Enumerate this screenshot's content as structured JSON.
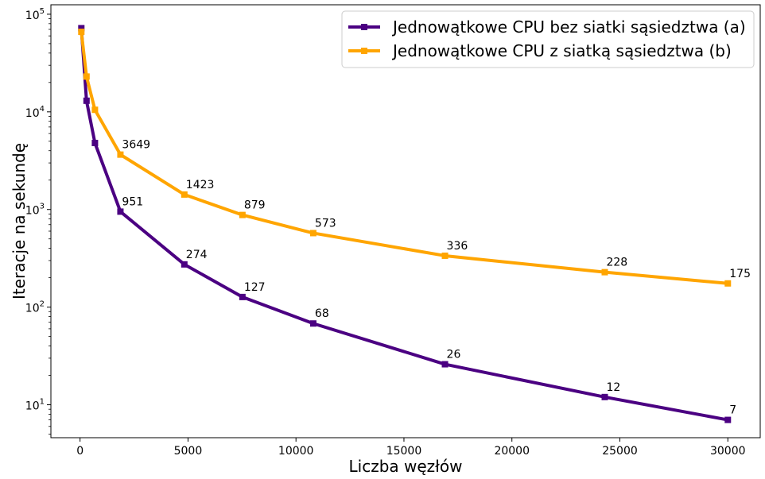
{
  "chart_data": {
    "type": "line",
    "xlabel": "Liczba węzłów",
    "ylabel": "Iteracje na sekundę",
    "xlim": [
      -1350,
      31500
    ],
    "ylim": [
      4.6,
      125000
    ],
    "yscale": "log",
    "x_ticks": [
      0,
      5000,
      10000,
      15000,
      20000,
      25000,
      30000
    ],
    "y_ticks": [
      {
        "value": 10,
        "base": "10",
        "exp": "1"
      },
      {
        "value": 100,
        "base": "10",
        "exp": "2"
      },
      {
        "value": 1000,
        "base": "10",
        "exp": "3"
      },
      {
        "value": 10000,
        "base": "10",
        "exp": "4"
      },
      {
        "value": 100000,
        "base": "10",
        "exp": "5"
      }
    ],
    "grid": false,
    "legend_position": "top-right",
    "series": [
      {
        "name": "Jednowątkowe CPU bez siatki sąsiedztwa (a)",
        "color": "#4b0082",
        "marker": "square",
        "x": [
          60,
          300,
          690,
          1870,
          4830,
          7520,
          10800,
          16900,
          24300,
          30000
        ],
        "y": [
          72000,
          13000,
          4800,
          951,
          274,
          127,
          68,
          26,
          12,
          7
        ],
        "labels": [
          "",
          "",
          "",
          "951",
          "274",
          "127",
          "68",
          "26",
          "12",
          "7"
        ]
      },
      {
        "name": "Jednowątkowe CPU z siatką sąsiedztwa (b)",
        "color": "#ffa500",
        "marker": "square",
        "x": [
          60,
          300,
          690,
          1870,
          4830,
          7520,
          10800,
          16900,
          24300,
          30000
        ],
        "y": [
          66000,
          23000,
          10500,
          3649,
          1423,
          879,
          573,
          336,
          228,
          175
        ],
        "labels": [
          "",
          "",
          "",
          "3649",
          "1423",
          "879",
          "573",
          "336",
          "228",
          "175"
        ]
      }
    ]
  }
}
